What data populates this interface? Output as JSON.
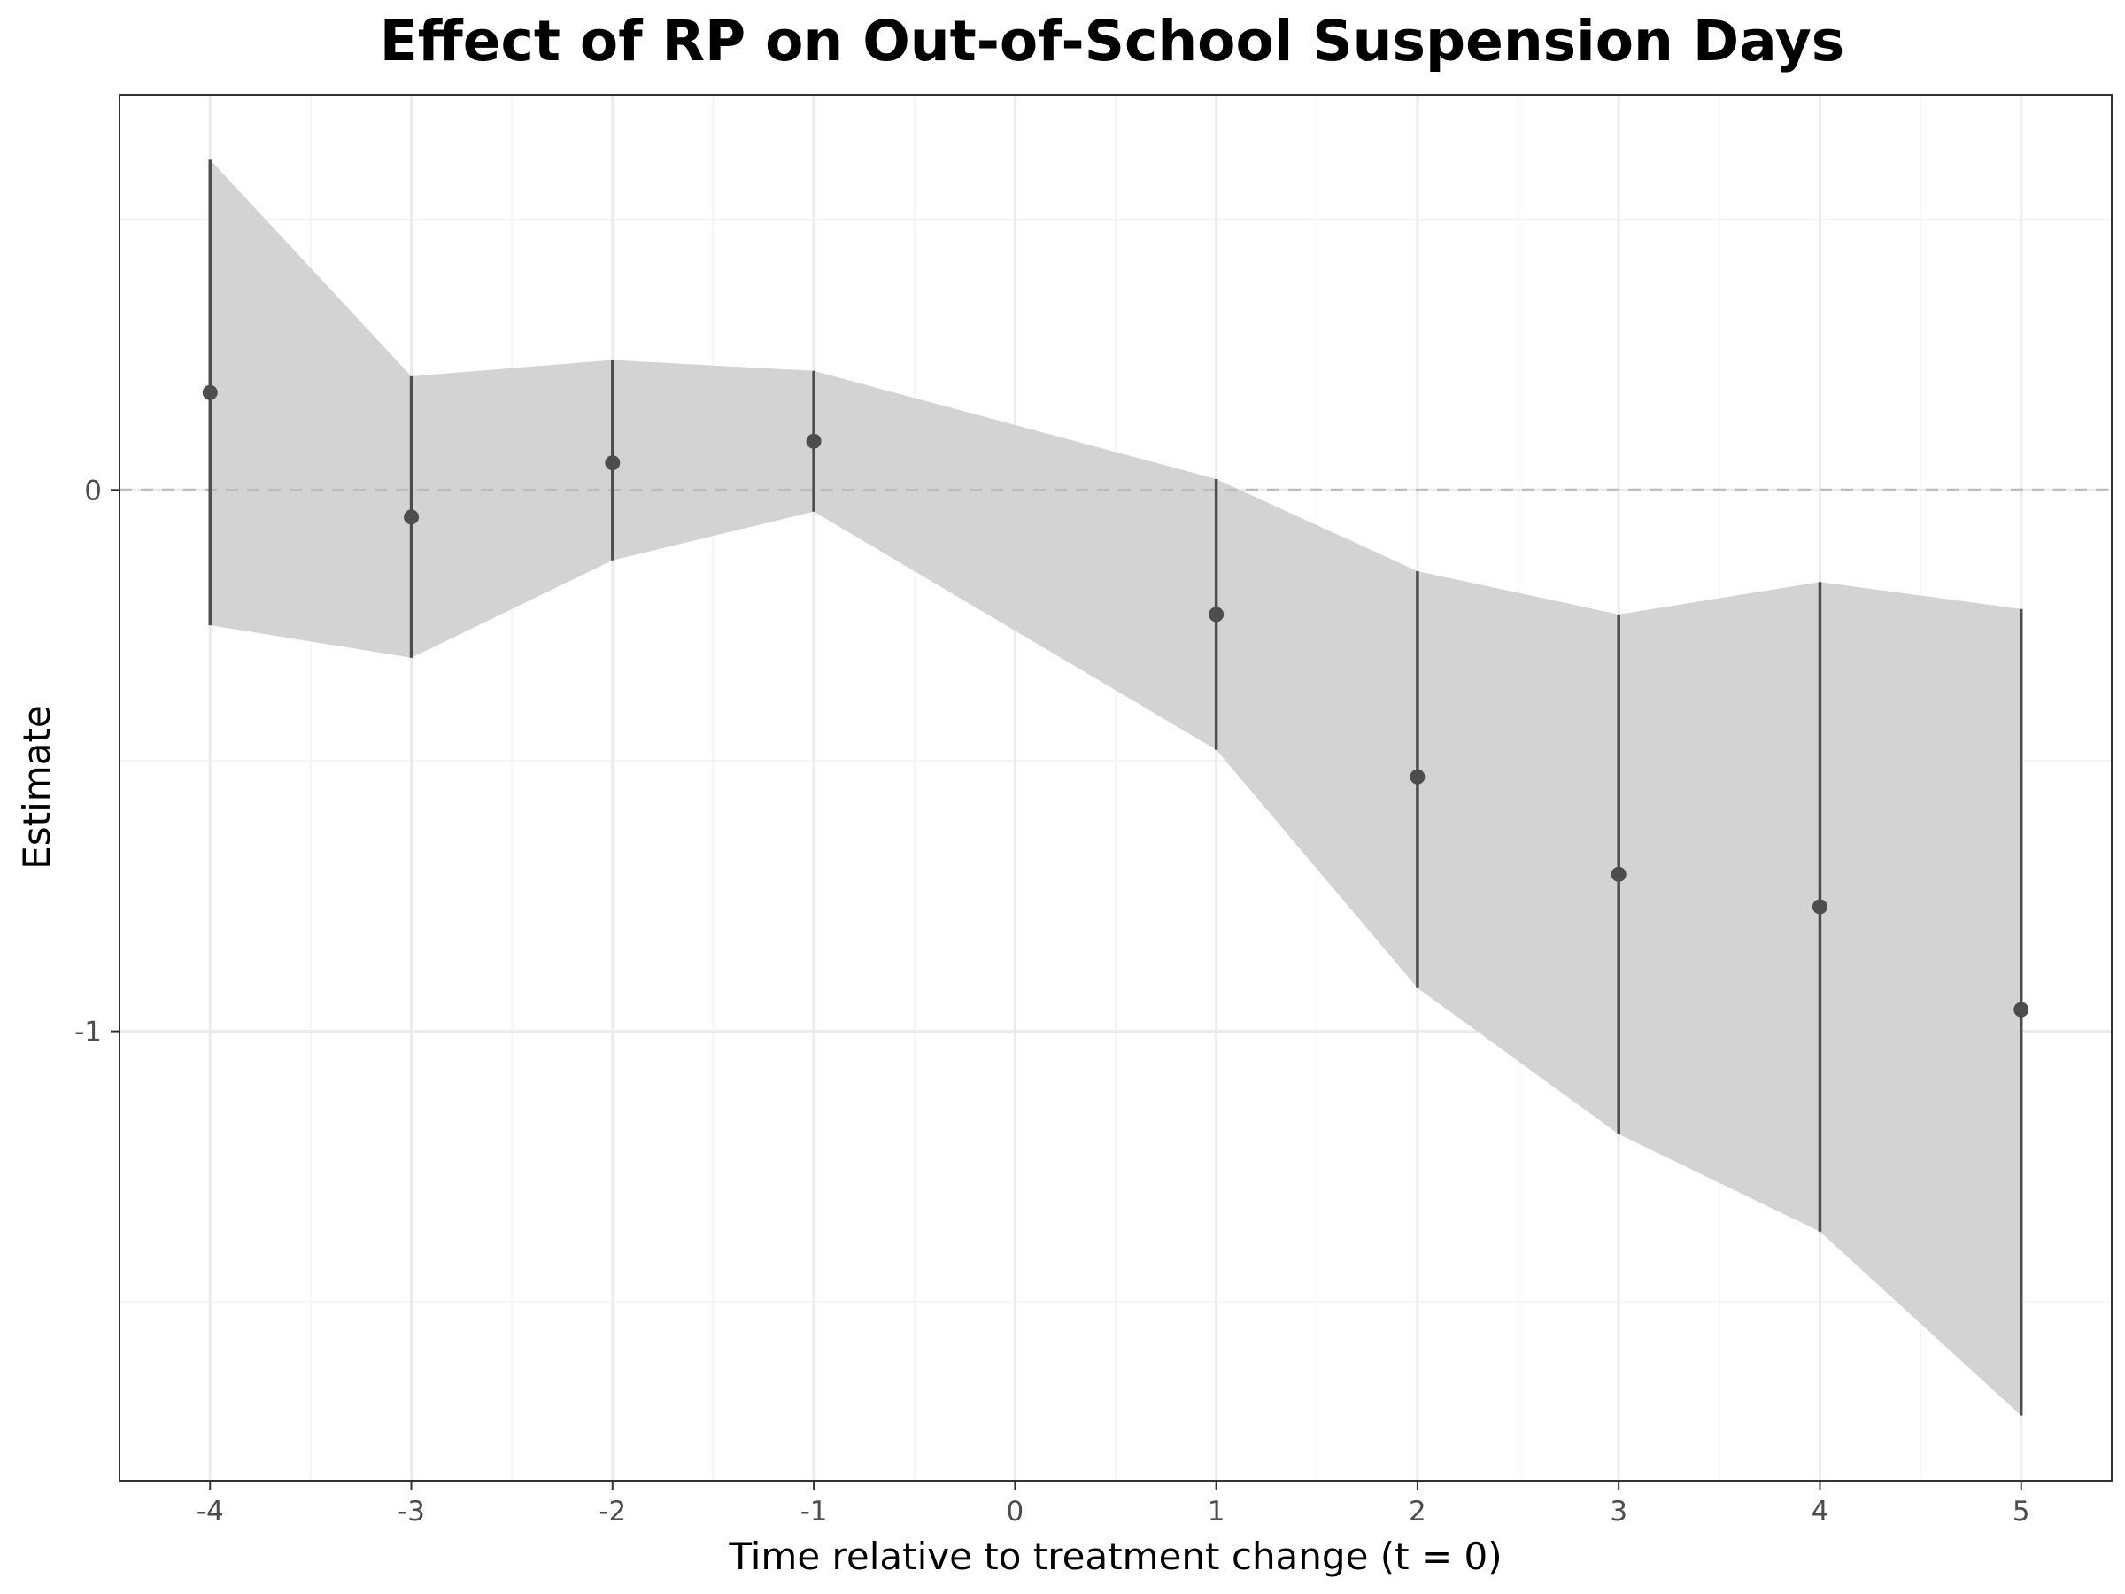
{
  "chart_data": {
    "type": "line",
    "title": "Effect of RP on Out-of-School Suspension Days",
    "xlabel": "Time relative to treatment change (t = 0)",
    "ylabel": "Estimate",
    "x_ticks": [
      -4,
      -3,
      -2,
      -1,
      0,
      1,
      2,
      3,
      4,
      5
    ],
    "x_tick_labels": [
      "-4",
      "-3",
      "-2",
      "-1",
      "0",
      "1",
      "2",
      "3",
      "4",
      "5"
    ],
    "y_ticks": [
      0,
      -1
    ],
    "y_tick_labels": [
      "0",
      "-1"
    ],
    "xlim": [
      -4.45,
      5.45
    ],
    "ylim": [
      -1.83,
      0.73
    ],
    "grid": true,
    "reference_line": {
      "y": 0,
      "style": "dashed"
    },
    "series": [
      {
        "x": [
          -4,
          -3,
          -2,
          -1,
          1,
          2,
          3,
          4,
          5
        ],
        "estimate": [
          0.18,
          -0.05,
          0.05,
          0.09,
          -0.23,
          -0.53,
          -0.71,
          -0.77,
          -0.96
        ],
        "ci_lower": [
          -0.25,
          -0.31,
          -0.13,
          -0.04,
          -0.48,
          -0.92,
          -1.19,
          -1.37,
          -1.71
        ],
        "ci_upper": [
          0.61,
          0.21,
          0.24,
          0.22,
          0.02,
          -0.15,
          -0.23,
          -0.17,
          -0.22
        ]
      }
    ],
    "colors": {
      "ribbon": "#d3d3d3",
      "errorbar": "#4d4d4d",
      "point": "#4d4d4d",
      "reference_line": "#bdbdbd",
      "grid_major": "#ebebeb",
      "grid_minor": "#f3f3f3",
      "panel_border": "#333333"
    }
  }
}
